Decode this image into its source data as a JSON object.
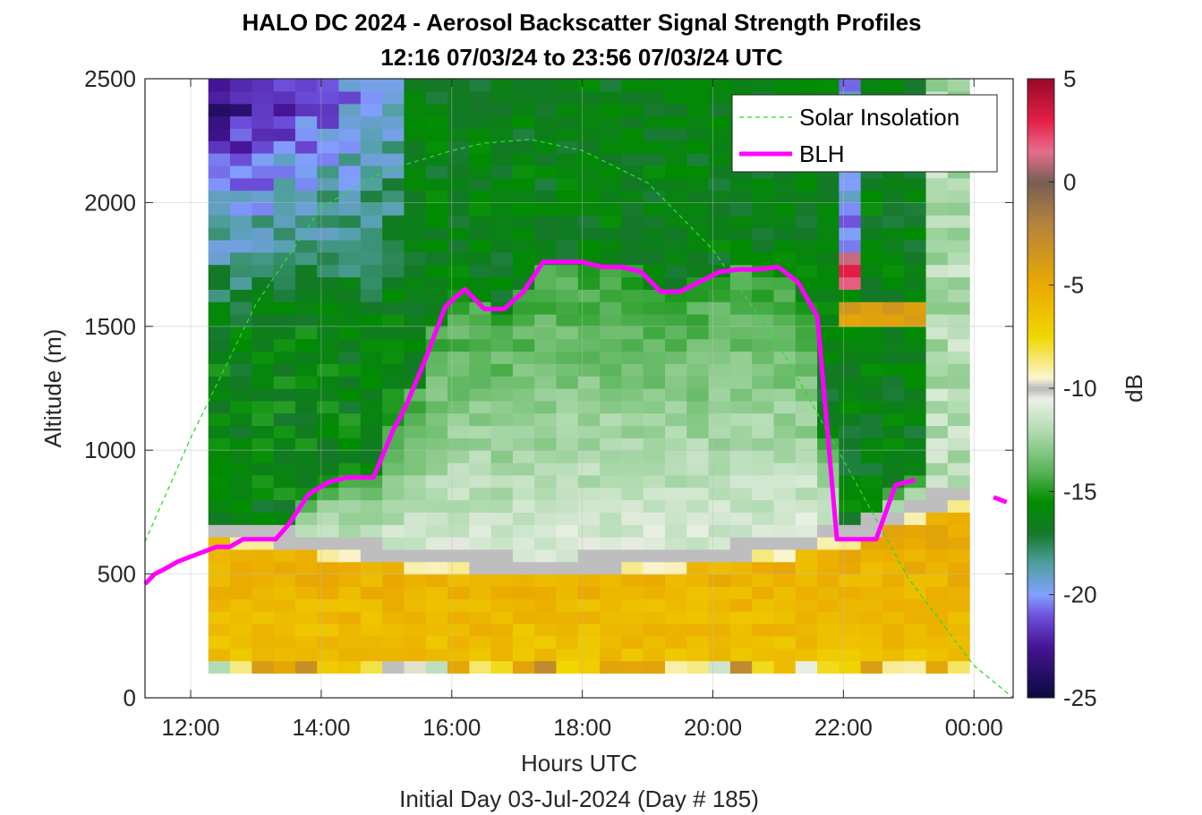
{
  "chart_data": {
    "type": "heatmap",
    "title": "HALO DC 2024 - Aerosol Backscatter Signal Strength Profiles",
    "subtitle": "12:16 07/03/24 to 23:56 07/03/24  UTC",
    "xlabel": "Hours UTC",
    "footer": "Initial Day 03-Jul-2024 (Day # 185)",
    "ylabel": "Altitude (m)",
    "colorbar_label": "dB",
    "xlim": [
      11.3,
      24.6
    ],
    "ylim": [
      0,
      2500
    ],
    "clim": [
      -25,
      5
    ],
    "x_ticks": [
      12,
      14,
      16,
      18,
      20,
      22,
      24
    ],
    "x_tick_labels": [
      "12:00",
      "14:00",
      "16:00",
      "18:00",
      "20:00",
      "22:00",
      "00:00"
    ],
    "y_ticks": [
      0,
      500,
      1000,
      1500,
      2000,
      2500
    ],
    "y_tick_labels": [
      "0",
      "500",
      "1000",
      "1500",
      "2000",
      "2500"
    ],
    "c_ticks": [
      5,
      0,
      -5,
      -10,
      -15,
      -20,
      -25
    ],
    "c_tick_labels": [
      "5",
      "0",
      "-5",
      "-10",
      "-15",
      "-20",
      "-25"
    ],
    "grid": true,
    "legend_position": "top-right",
    "time_range_hours": [
      12.27,
      23.93
    ],
    "altitude_range_m": [
      100,
      2500
    ],
    "series": [
      {
        "name": "BLH",
        "color": "#ff00ff",
        "x": [
          11.3,
          11.45,
          11.6,
          11.8,
          12.0,
          12.2,
          12.4,
          12.6,
          12.8,
          13.1,
          13.3,
          13.5,
          13.8,
          14.1,
          14.4,
          14.6,
          14.8,
          15.1,
          15.3,
          15.6,
          15.9,
          16.2,
          16.5,
          16.8,
          17.1,
          17.4,
          17.7,
          18.0,
          18.3,
          18.6,
          18.9,
          19.2,
          19.5,
          19.8,
          20.1,
          20.4,
          20.7,
          21.0,
          21.3,
          21.6,
          21.9,
          22.2,
          22.5,
          22.8,
          23.1,
          23.4,
          23.7,
          24.0,
          24.3,
          24.5
        ],
        "y": [
          460,
          500,
          520,
          550,
          570,
          590,
          610,
          610,
          640,
          640,
          640,
          700,
          820,
          870,
          890,
          890,
          890,
          1080,
          1180,
          1370,
          1580,
          1650,
          1570,
          1570,
          1640,
          1760,
          1760,
          1760,
          1740,
          1740,
          1720,
          1640,
          1640,
          1680,
          1720,
          1730,
          1730,
          1740,
          1680,
          1540,
          640,
          640,
          640,
          860,
          880,
          null,
          null,
          null,
          810,
          790
        ]
      },
      {
        "name": "Solar Insolation",
        "color": "#2cdd2c",
        "style": "dashed",
        "x": [
          11.3,
          12.0,
          13.0,
          14.0,
          15.0,
          16.0,
          16.5,
          17.2,
          18.0,
          19.0,
          20.0,
          21.0,
          22.0,
          23.0,
          24.0,
          24.6
        ],
        "y": [
          630,
          1050,
          1590,
          1980,
          2130,
          2210,
          2240,
          2255,
          2210,
          2080,
          1810,
          1430,
          960,
          480,
          130,
          0
        ]
      }
    ]
  }
}
